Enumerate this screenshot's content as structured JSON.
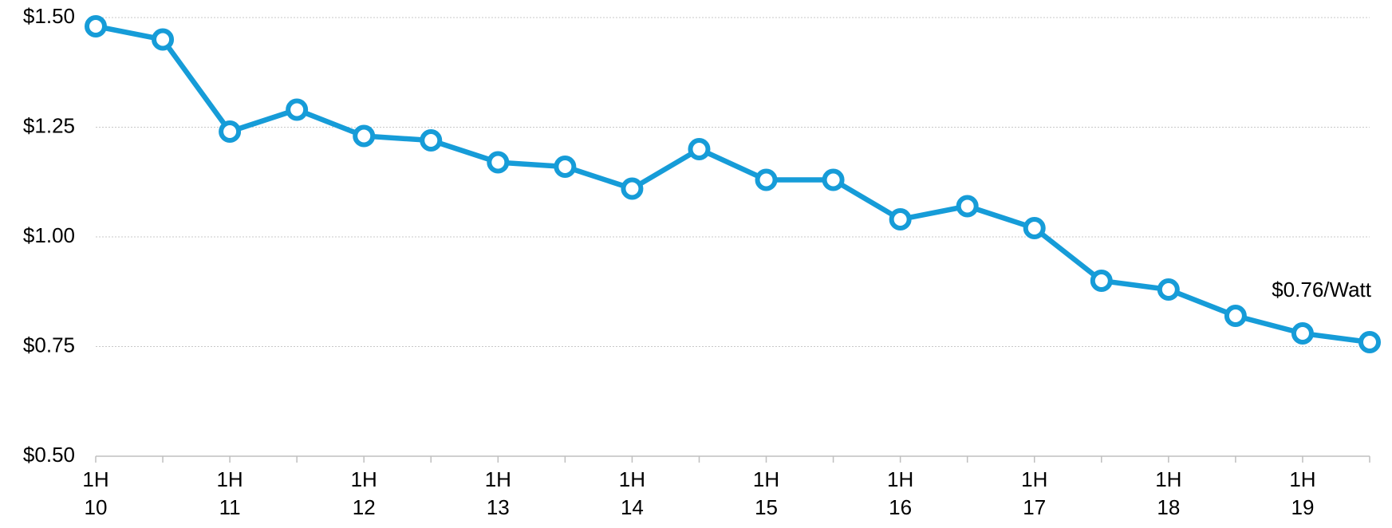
{
  "chart_data": {
    "type": "line",
    "categories": [
      "1H\n10",
      null,
      "1H\n11",
      null,
      "1H\n12",
      null,
      "1H\n13",
      null,
      "1H\n14",
      null,
      "1H\n15",
      null,
      "1H\n16",
      null,
      "1H\n17",
      null,
      "1H\n18",
      null,
      "1H\n19",
      null
    ],
    "series": [
      {
        "color": "#169cd8",
        "values": [
          1.48,
          1.45,
          1.24,
          1.29,
          1.23,
          1.22,
          1.17,
          1.16,
          1.11,
          1.2,
          1.13,
          1.13,
          1.04,
          1.07,
          1.02,
          0.9,
          0.88,
          0.82,
          0.78,
          0.76
        ]
      }
    ],
    "ylim": [
      0.5,
      1.5
    ],
    "yticks": [
      {
        "value": 0.5,
        "label": "$0.50"
      },
      {
        "value": 0.75,
        "label": "$0.75"
      },
      {
        "value": 1.0,
        "label": "$1.00"
      },
      {
        "value": 1.25,
        "label": "$1.25"
      },
      {
        "value": 1.5,
        "label": "$1.50"
      }
    ],
    "grid": true,
    "annotations": [
      {
        "text": "$0.76/Watt",
        "point": 19
      }
    ]
  }
}
